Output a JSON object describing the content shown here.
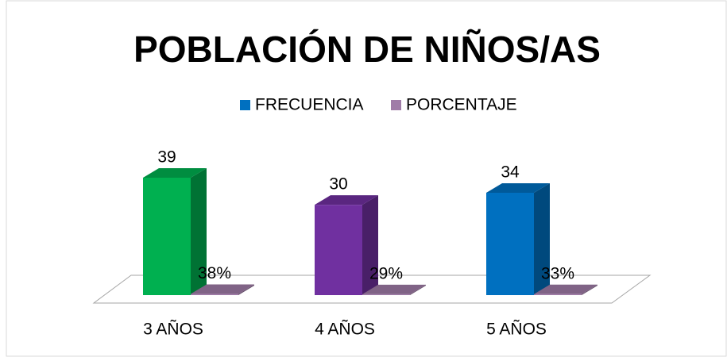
{
  "chart_data": {
    "type": "bar3d",
    "title": "POBLACIÓN DE NIÑOS/AS",
    "categories": [
      "3 AÑOS",
      "4 AÑOS",
      "5 AÑOS"
    ],
    "series": [
      {
        "name": "FRECUENCIA",
        "color": "#0070c0",
        "colors": [
          "#00b050",
          "#7030a0",
          "#0070c0"
        ],
        "values": [
          39,
          30,
          34
        ]
      },
      {
        "name": "PORCENTAJE",
        "color": "#a07ca8",
        "values": [
          0.38,
          0.29,
          0.33
        ],
        "value_labels": [
          "38%",
          "29%",
          "33%"
        ]
      }
    ],
    "legend": "top"
  }
}
